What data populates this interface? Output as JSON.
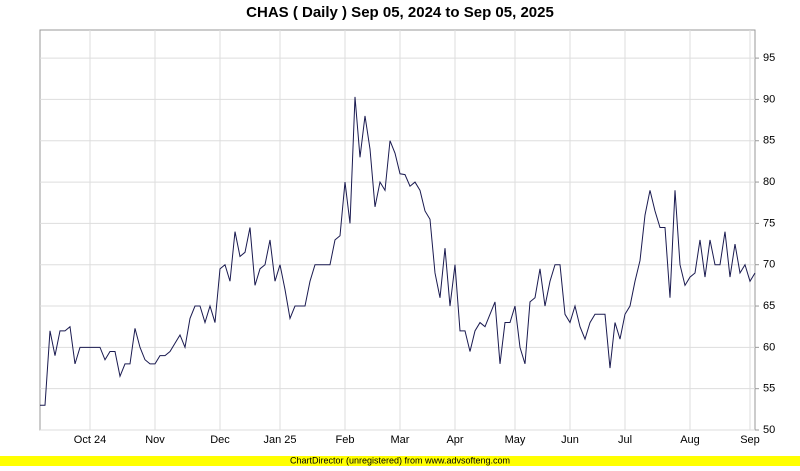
{
  "chart_data": {
    "type": "line",
    "title": "CHAS ( Daily ) Sep 05, 2024 to Sep 05, 2025",
    "categories": [
      null,
      null,
      null,
      null,
      null,
      null,
      null,
      null,
      null,
      null,
      "Oct 24",
      null,
      null,
      null,
      null,
      null,
      null,
      null,
      null,
      null,
      null,
      null,
      null,
      "Nov",
      null,
      null,
      null,
      null,
      null,
      null,
      null,
      null,
      null,
      null,
      null,
      null,
      "Dec",
      null,
      null,
      null,
      null,
      null,
      null,
      null,
      null,
      null,
      null,
      null,
      "Jan 25",
      null,
      null,
      null,
      null,
      null,
      null,
      null,
      null,
      null,
      null,
      null,
      null,
      "Feb",
      null,
      null,
      null,
      null,
      null,
      null,
      null,
      null,
      null,
      null,
      "Mar",
      null,
      null,
      null,
      null,
      null,
      null,
      null,
      null,
      null,
      null,
      "Apr",
      null,
      null,
      null,
      null,
      null,
      null,
      null,
      null,
      null,
      null,
      null,
      "May",
      null,
      null,
      null,
      null,
      null,
      null,
      null,
      null,
      null,
      null,
      "Jun",
      null,
      null,
      null,
      null,
      null,
      null,
      null,
      null,
      null,
      null,
      "Jul",
      null,
      null,
      null,
      null,
      null,
      null,
      null,
      null,
      null,
      null,
      null,
      null,
      "Aug",
      null,
      null,
      null,
      null,
      null,
      null,
      null,
      null,
      null,
      null,
      null,
      "Sep",
      null
    ],
    "series": [
      {
        "name": "CHAS",
        "color": "#1a1a50",
        "values": [
          53,
          53,
          62,
          59,
          62,
          62,
          62.5,
          58,
          60,
          60,
          60,
          60,
          60,
          58.5,
          59.5,
          59.5,
          56.5,
          58,
          58,
          62.3,
          60,
          58.5,
          58,
          58,
          59,
          59,
          59.5,
          60.5,
          61.5,
          60,
          63.5,
          65,
          65,
          63,
          65,
          63,
          69.5,
          70,
          68,
          74,
          71,
          71.5,
          74.5,
          67.5,
          69.5,
          70,
          73,
          68,
          70,
          67,
          63.5,
          65,
          65,
          65,
          68,
          70,
          70,
          70,
          70,
          73,
          73.5,
          80,
          75,
          90.3,
          83,
          88,
          84,
          77,
          80,
          79,
          85,
          83.5,
          81,
          80.9,
          79.5,
          80,
          79,
          76.5,
          75.5,
          69,
          66,
          72,
          65,
          70,
          62,
          62,
          59.5,
          62,
          63,
          62.5,
          64,
          65.5,
          58,
          63,
          63,
          65,
          60,
          58,
          65.5,
          66,
          69.5,
          65,
          68,
          70,
          70,
          64,
          63,
          65,
          62.5,
          61,
          63,
          64,
          64,
          64,
          57.5,
          63,
          61,
          64,
          65,
          68,
          70.5,
          76,
          79,
          76.5,
          74.5,
          74.5,
          66,
          79,
          70,
          67.5,
          68.5,
          69,
          73,
          68.5,
          73,
          70,
          70,
          74,
          68.5,
          72.5,
          69,
          70,
          68,
          69
        ]
      }
    ],
    "ylim": [
      50,
      98.4
    ],
    "yticks": [
      50,
      55,
      60,
      65,
      70,
      75,
      80,
      85,
      90,
      95
    ],
    "grid": true
  },
  "footer": "ChartDirector (unregistered) from www.advsofteng.com"
}
